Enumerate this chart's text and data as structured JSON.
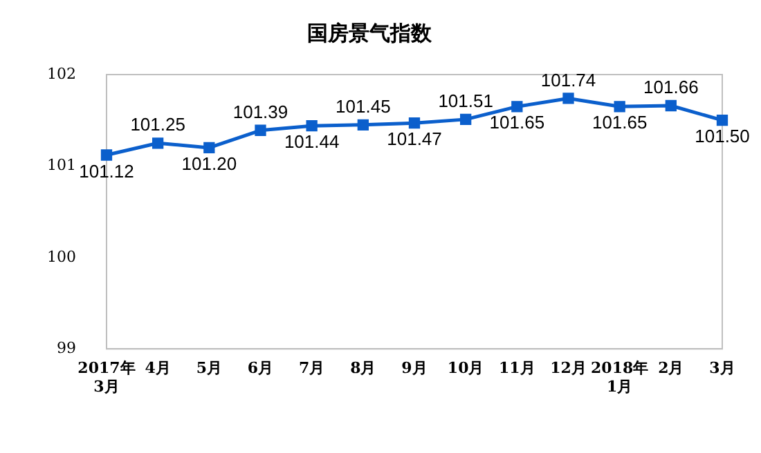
{
  "chart_data": {
    "type": "line",
    "title": "国房景气指数",
    "categories": [
      "2017年\n3月",
      "4月",
      "5月",
      "6月",
      "7月",
      "8月",
      "9月",
      "10月",
      "11月",
      "12月",
      "2018年\n1月",
      "2月",
      "3月"
    ],
    "series": [
      {
        "color": "#0b5fcc",
        "values": [
          101.12,
          101.25,
          101.2,
          101.39,
          101.44,
          101.45,
          101.47,
          101.51,
          101.65,
          101.74,
          101.65,
          101.66,
          101.5
        ],
        "value_labels": [
          "101.12",
          "101.25",
          "101.20",
          "101.39",
          "101.44",
          "101.45",
          "101.47",
          "101.51",
          "101.65",
          "101.74",
          "101.65",
          "101.66",
          "101.50"
        ]
      }
    ],
    "ylim": [
      99,
      102
    ],
    "yticks": [
      99,
      100,
      101,
      102
    ],
    "grid": false,
    "legend": false,
    "marker": "square",
    "line_style": "solid"
  }
}
